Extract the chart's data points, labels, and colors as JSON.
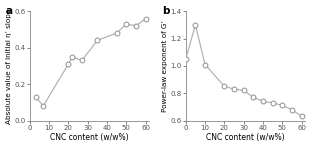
{
  "panel_a": {
    "x": [
      3,
      7,
      20,
      22,
      27,
      35,
      45,
      50,
      55,
      60
    ],
    "y": [
      0.13,
      0.08,
      0.31,
      0.35,
      0.33,
      0.44,
      0.48,
      0.53,
      0.52,
      0.56
    ],
    "xlabel": "CNC content (w/w%)",
    "ylabel": "Absolute value of initial η’ slope",
    "label": "a",
    "xlim": [
      0,
      62
    ],
    "ylim": [
      0.0,
      0.6
    ],
    "yticks": [
      0.0,
      0.2,
      0.4,
      0.6
    ],
    "xticks": [
      0,
      10,
      20,
      30,
      40,
      50,
      60
    ]
  },
  "panel_b": {
    "x": [
      0,
      5,
      10,
      20,
      25,
      30,
      35,
      40,
      45,
      50,
      55,
      60
    ],
    "y": [
      1.05,
      1.3,
      1.01,
      0.85,
      0.83,
      0.82,
      0.77,
      0.74,
      0.73,
      0.71,
      0.68,
      0.63
    ],
    "xlabel": "CNC content (w/w%)",
    "ylabel": "Power-law exponent of G’",
    "label": "b",
    "xlim": [
      0,
      62
    ],
    "ylim": [
      0.6,
      1.4
    ],
    "yticks": [
      0.6,
      0.8,
      1.0,
      1.2,
      1.4
    ],
    "xticks": [
      0,
      10,
      20,
      30,
      40,
      50,
      60
    ]
  },
  "line_color": "#b0b0b0",
  "marker_facecolor": "white",
  "marker_edge_color": "#909090",
  "marker_size": 3.5,
  "marker_edge_width": 0.7,
  "line_width": 0.85,
  "xlabel_fontsize": 5.5,
  "ylabel_fontsize": 5.2,
  "label_fontsize": 7.5,
  "tick_fontsize": 5.0,
  "background_color": "#ffffff",
  "spine_color": "#888888",
  "tick_color": "#555555"
}
